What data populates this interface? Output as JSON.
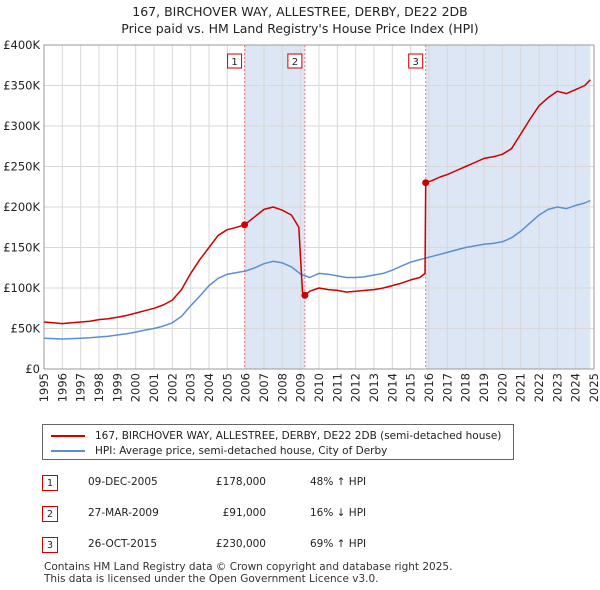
{
  "title_line1": "167, BIRCHOVER WAY, ALLESTREE, DERBY, DE22 2DB",
  "title_line2": "Price paid vs. HM Land Registry's House Price Index (HPI)",
  "chart_data": {
    "type": "line",
    "title": "167, BIRCHOVER WAY, ALLESTREE, DERBY, DE22 2DB",
    "subtitle": "Price paid vs. HM Land Registry's House Price Index (HPI)",
    "xlabel": "",
    "ylabel": "",
    "xlim": [
      1995,
      2025
    ],
    "ylim": [
      0,
      400000
    ],
    "y_ticks": [
      {
        "value": 0,
        "label": "£0"
      },
      {
        "value": 50000,
        "label": "£50K"
      },
      {
        "value": 100000,
        "label": "£100K"
      },
      {
        "value": 150000,
        "label": "£150K"
      },
      {
        "value": 200000,
        "label": "£200K"
      },
      {
        "value": 250000,
        "label": "£250K"
      },
      {
        "value": 300000,
        "label": "£300K"
      },
      {
        "value": 350000,
        "label": "£350K"
      },
      {
        "value": 400000,
        "label": "£400K"
      }
    ],
    "x_ticks": [
      "1995",
      "1996",
      "1997",
      "1998",
      "1999",
      "2000",
      "2001",
      "2002",
      "2003",
      "2004",
      "2005",
      "2006",
      "2007",
      "2008",
      "2009",
      "2010",
      "2011",
      "2012",
      "2013",
      "2014",
      "2015",
      "2016",
      "2017",
      "2018",
      "2019",
      "2020",
      "2021",
      "2022",
      "2023",
      "2024",
      "2025"
    ],
    "grid": true,
    "colors": {
      "property": "#cc0000",
      "hpi": "#5b8fd0",
      "shade": "#dce6f5",
      "marker_line": "#e87a7a",
      "grid": "#d8d8d8"
    },
    "shaded_periods": [
      [
        2005.94,
        2009.23
      ],
      [
        2015.82,
        2024.8
      ]
    ],
    "markers": [
      {
        "label": "1",
        "x": 2005.94,
        "y": 178000
      },
      {
        "label": "2",
        "x": 2009.23,
        "y": 91000
      },
      {
        "label": "3",
        "x": 2015.82,
        "y": 230000
      }
    ],
    "series": [
      {
        "name": "167, BIRCHOVER WAY, ALLESTREE, DERBY, DE22 2DB (semi-detached house)",
        "color": "#cc0000",
        "x": [
          1995,
          1995.5,
          1996,
          1996.5,
          1997,
          1997.5,
          1998,
          1998.5,
          1999,
          1999.5,
          2000,
          2000.5,
          2001,
          2001.5,
          2002,
          2002.5,
          2003,
          2003.5,
          2004,
          2004.5,
          2005,
          2005.5,
          2005.94,
          2006.5,
          2007,
          2007.5,
          2008,
          2008.5,
          2008.9,
          2009.1,
          2009.23,
          2009.5,
          2010,
          2010.5,
          2011,
          2011.5,
          2012,
          2012.5,
          2013,
          2013.5,
          2014,
          2014.5,
          2015,
          2015.5,
          2015.78,
          2015.82,
          2016.2,
          2016.6,
          2017,
          2017.5,
          2018,
          2018.5,
          2019,
          2019.5,
          2020,
          2020.5,
          2021,
          2021.5,
          2022,
          2022.5,
          2023,
          2023.5,
          2024,
          2024.5,
          2024.8
        ],
        "y": [
          58000,
          57000,
          56000,
          57000,
          58000,
          59000,
          61000,
          62000,
          64000,
          66000,
          69000,
          72000,
          75000,
          79000,
          85000,
          98000,
          118000,
          135000,
          150000,
          165000,
          172000,
          175000,
          178000,
          188000,
          197000,
          200000,
          196000,
          190000,
          175000,
          95000,
          91000,
          96000,
          100000,
          98000,
          97000,
          95000,
          96000,
          97000,
          98000,
          100000,
          103000,
          106000,
          110000,
          113000,
          118000,
          230000,
          233000,
          237000,
          240000,
          245000,
          250000,
          255000,
          260000,
          262000,
          265000,
          272000,
          290000,
          308000,
          325000,
          335000,
          343000,
          340000,
          345000,
          350000,
          357000
        ]
      },
      {
        "name": "HPI: Average price, semi-detached house, City of Derby",
        "color": "#5b8fd0",
        "x": [
          1995,
          1995.5,
          1996,
          1996.5,
          1997,
          1997.5,
          1998,
          1998.5,
          1999,
          1999.5,
          2000,
          2000.5,
          2001,
          2001.5,
          2002,
          2002.5,
          2003,
          2003.5,
          2004,
          2004.5,
          2005,
          2005.5,
          2006,
          2006.5,
          2007,
          2007.5,
          2008,
          2008.5,
          2009,
          2009.5,
          2010,
          2010.5,
          2011,
          2011.5,
          2012,
          2012.5,
          2013,
          2013.5,
          2014,
          2014.5,
          2015,
          2015.5,
          2016,
          2016.5,
          2017,
          2017.5,
          2018,
          2018.5,
          2019,
          2019.5,
          2020,
          2020.5,
          2021,
          2021.5,
          2022,
          2022.5,
          2023,
          2023.5,
          2024,
          2024.5,
          2024.8
        ],
        "y": [
          38000,
          37500,
          37000,
          37500,
          38000,
          38500,
          39500,
          40500,
          42000,
          43500,
          45500,
          48000,
          50000,
          53000,
          57000,
          65000,
          78000,
          90000,
          103000,
          112000,
          117000,
          119000,
          121000,
          125000,
          130000,
          133000,
          131000,
          126000,
          117000,
          113000,
          118000,
          117000,
          115000,
          113000,
          113000,
          114000,
          116000,
          118000,
          122000,
          127000,
          132000,
          135000,
          138000,
          141000,
          144000,
          147000,
          150000,
          152000,
          154000,
          155000,
          157000,
          162000,
          170000,
          180000,
          190000,
          197000,
          200000,
          198000,
          202000,
          205000,
          208000
        ]
      }
    ]
  },
  "legend": {
    "items": [
      {
        "label": "167, BIRCHOVER WAY, ALLESTREE, DERBY, DE22 2DB (semi-detached house)"
      },
      {
        "label": "HPI: Average price, semi-detached house, City of Derby"
      }
    ]
  },
  "transactions": [
    {
      "num": "1",
      "date": "09-DEC-2005",
      "price": "£178,000",
      "hpi": "48% ↑ HPI"
    },
    {
      "num": "2",
      "date": "27-MAR-2009",
      "price": "£91,000",
      "hpi": "16% ↓ HPI"
    },
    {
      "num": "3",
      "date": "26-OCT-2015",
      "price": "£230,000",
      "hpi": "69% ↑ HPI"
    }
  ],
  "footer": {
    "line1": "Contains HM Land Registry data © Crown copyright and database right 2025.",
    "line2": "This data is licensed under the Open Government Licence v3.0."
  }
}
